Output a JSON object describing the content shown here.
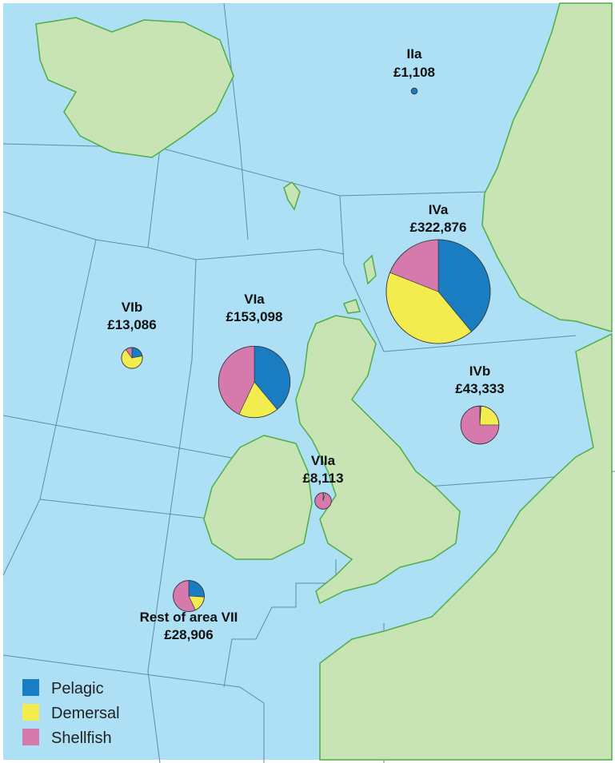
{
  "legend": [
    {
      "name": "Pelagic",
      "color": "#1a7cc1"
    },
    {
      "name": "Demersal",
      "color": "#f2ec4f"
    },
    {
      "name": "Shellfish",
      "color": "#d67aae"
    }
  ],
  "areas": [
    {
      "name": "IIa",
      "value": 1108,
      "value_label": "£1,108",
      "shares": [
        100,
        0,
        0
      ]
    },
    {
      "name": "IVa",
      "value": 322876,
      "value_label": "£322,876",
      "shares": [
        39,
        42,
        19
      ]
    },
    {
      "name": "VIb",
      "value": 13086,
      "value_label": "£13,086",
      "shares": [
        22,
        68,
        10
      ]
    },
    {
      "name": "VIa",
      "value": 153098,
      "value_label": "£153,098",
      "shares": [
        39,
        18,
        43
      ]
    },
    {
      "name": "IVb",
      "value": 43333,
      "value_label": "£43,333",
      "shares": [
        1,
        24,
        75
      ]
    },
    {
      "name": "VIIa",
      "value": 8113,
      "value_label": "£8,113",
      "shares": [
        1,
        3,
        96
      ]
    },
    {
      "name": "Rest of area VII",
      "value": 28906,
      "value_label": "£28,906",
      "shares": [
        26,
        17,
        57
      ]
    }
  ]
}
